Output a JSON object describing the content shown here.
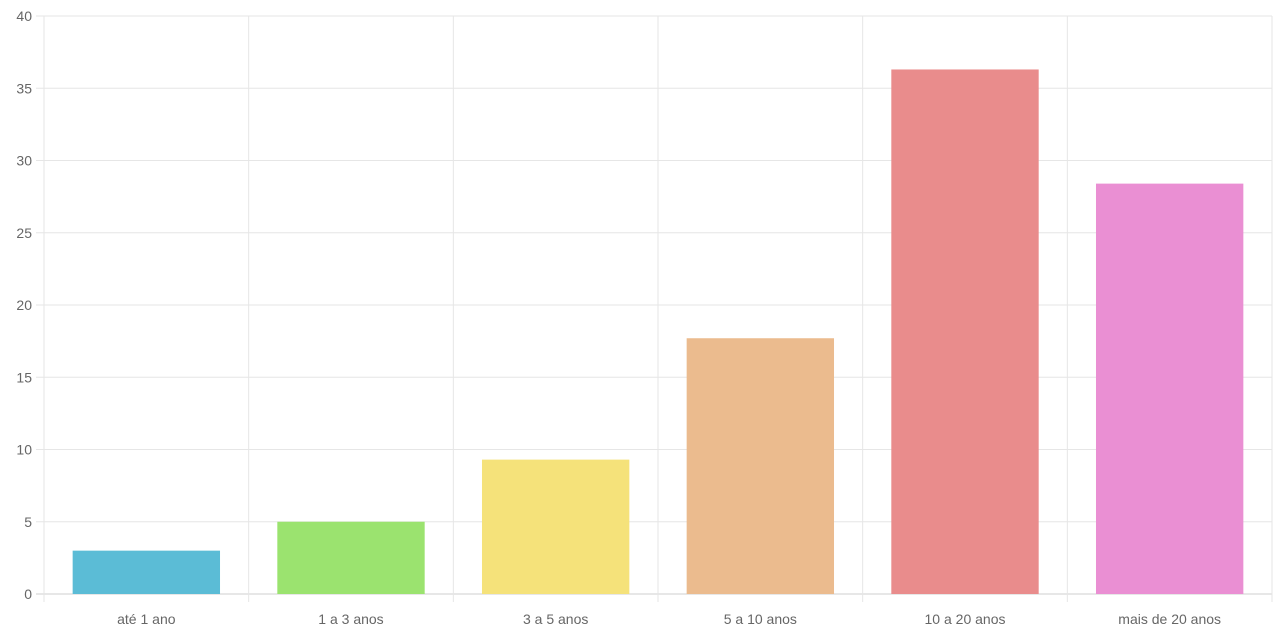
{
  "chart_data": {
    "type": "bar",
    "title": "",
    "xlabel": "",
    "ylabel": "",
    "categories": [
      "até 1 ano",
      "1 a 3 anos",
      "3 a 5 anos",
      "5 a 10 anos",
      "10 a 20 anos",
      "mais de 20 anos"
    ],
    "values": [
      3.0,
      5.0,
      9.3,
      17.7,
      36.3,
      28.4
    ],
    "colors": [
      "#5bbcd6",
      "#9be36f",
      "#f5e27a",
      "#ebbb8e",
      "#e98c8c",
      "#ea8fd3"
    ],
    "ylim": [
      0,
      40
    ],
    "yticks": [
      0,
      5,
      10,
      15,
      20,
      25,
      30,
      35,
      40
    ],
    "grid": true,
    "legend": "none"
  }
}
